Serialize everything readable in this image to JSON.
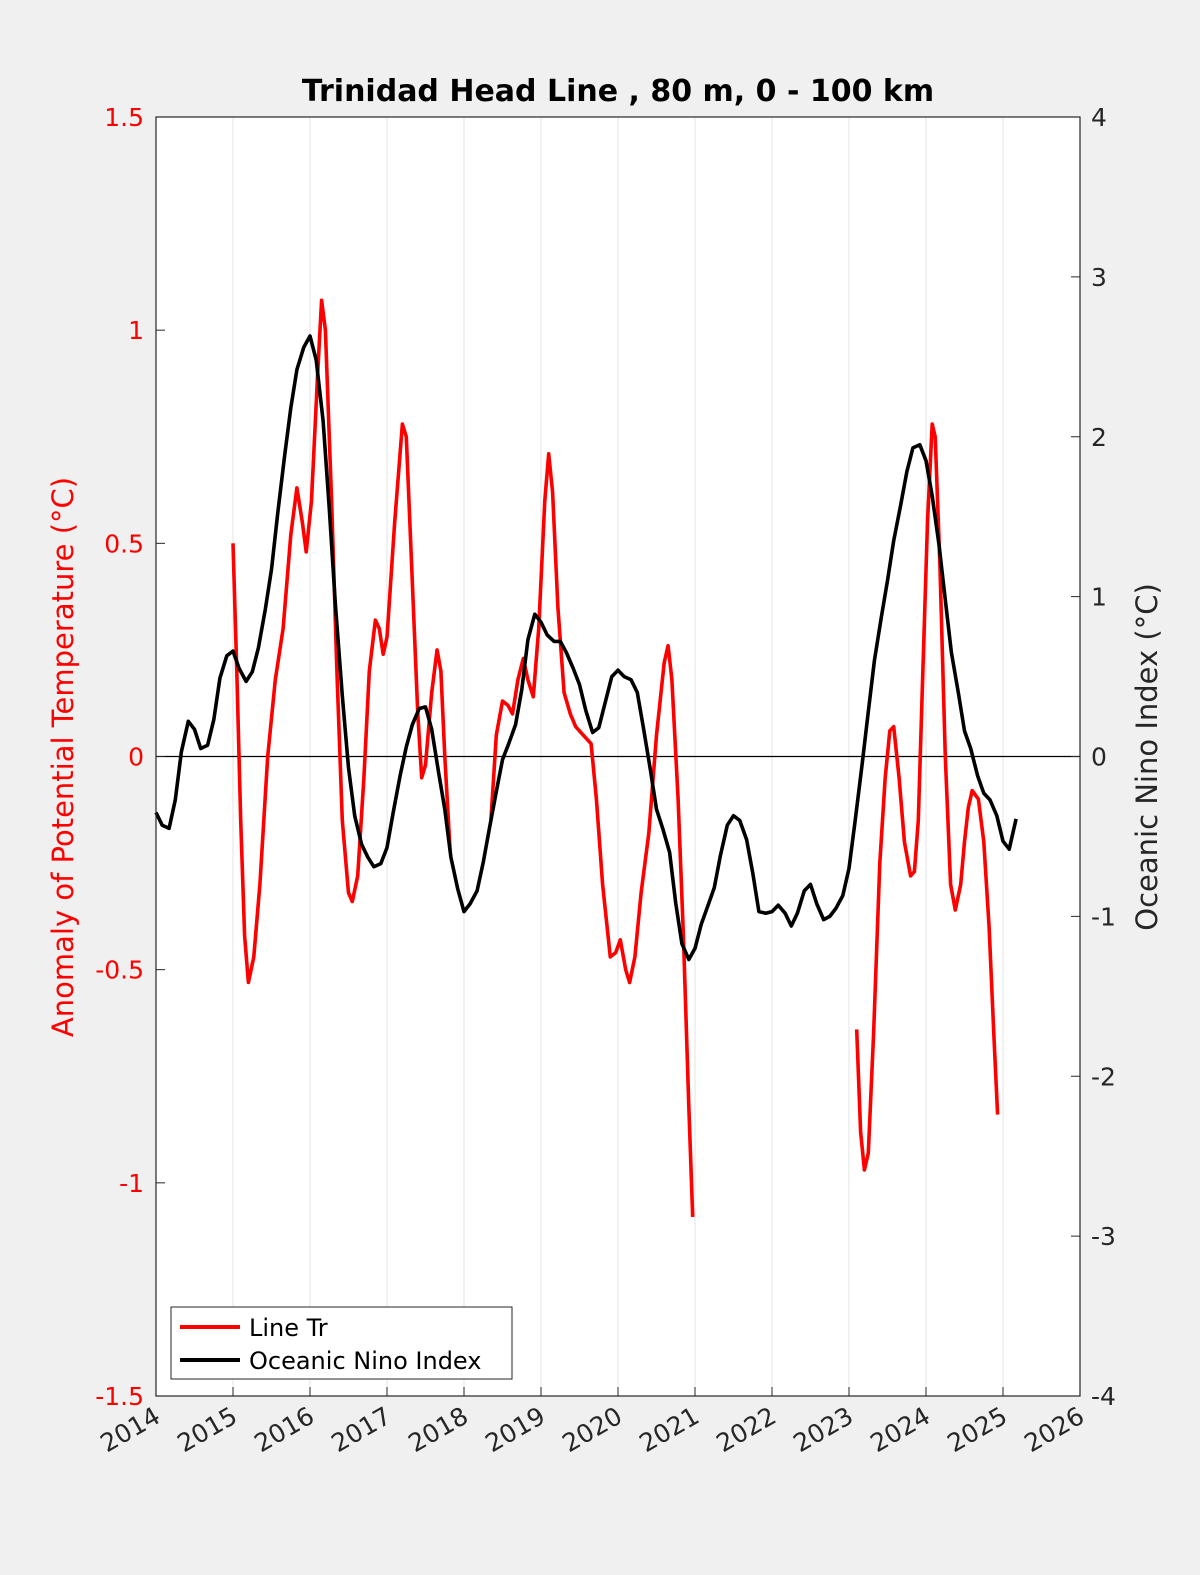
{
  "chart_data": {
    "type": "line",
    "title": "Trinidad Head Line , 80 m, 0 - 100 km",
    "ylabel_left": "Anomaly of Potential Temperature (°C)",
    "ylabel_right": "Oceanic Nino Index (°C)",
    "xlabel": "",
    "xlim": [
      2014,
      2026
    ],
    "ylim_left": [
      -1.5,
      1.5
    ],
    "ylim_right": [
      -4,
      4
    ],
    "x_ticks": [
      2014,
      2015,
      2016,
      2017,
      2018,
      2019,
      2020,
      2021,
      2022,
      2023,
      2024,
      2025,
      2026
    ],
    "x_tick_labels": [
      "2014",
      "2015",
      "2016",
      "2017",
      "2018",
      "2019",
      "2020",
      "2021",
      "2022",
      "2023",
      "2024",
      "2025",
      "2026"
    ],
    "y_left_ticks": [
      -1.5,
      -1,
      -0.5,
      0,
      0.5,
      1,
      1.5
    ],
    "y_left_tick_labels": [
      "-1.5",
      "-1",
      "-0.5",
      "0",
      "0.5",
      "1",
      "1.5"
    ],
    "y_right_ticks": [
      -4,
      -3,
      -2,
      -1,
      0,
      1,
      2,
      3,
      4
    ],
    "y_right_tick_labels": [
      "-4",
      "-3",
      "-2",
      "-1",
      "0",
      "1",
      "2",
      "3",
      "4"
    ],
    "grid_x": true,
    "zero_line": true,
    "legend_position": "bottom-left",
    "series": [
      {
        "name": "Line Tr",
        "axis": "left",
        "color": "#ff0000",
        "segments": [
          [
            [
              2015.0,
              0.5
            ],
            [
              2015.05,
              0.2
            ],
            [
              2015.1,
              -0.15
            ],
            [
              2015.15,
              -0.42
            ],
            [
              2015.2,
              -0.53
            ],
            [
              2015.27,
              -0.47
            ],
            [
              2015.35,
              -0.3
            ],
            [
              2015.45,
              0.0
            ],
            [
              2015.55,
              0.18
            ],
            [
              2015.65,
              0.3
            ],
            [
              2015.75,
              0.52
            ],
            [
              2015.83,
              0.63
            ],
            [
              2015.9,
              0.55
            ],
            [
              2015.95,
              0.48
            ],
            [
              2016.02,
              0.6
            ],
            [
              2016.1,
              0.9
            ],
            [
              2016.15,
              1.07
            ],
            [
              2016.2,
              1.0
            ],
            [
              2016.28,
              0.6
            ],
            [
              2016.35,
              0.2
            ],
            [
              2016.42,
              -0.15
            ],
            [
              2016.5,
              -0.32
            ],
            [
              2016.55,
              -0.34
            ],
            [
              2016.62,
              -0.28
            ],
            [
              2016.7,
              -0.05
            ],
            [
              2016.77,
              0.2
            ],
            [
              2016.85,
              0.32
            ],
            [
              2016.9,
              0.3
            ],
            [
              2016.95,
              0.24
            ],
            [
              2017.0,
              0.28
            ],
            [
              2017.1,
              0.55
            ],
            [
              2017.2,
              0.78
            ],
            [
              2017.25,
              0.75
            ],
            [
              2017.32,
              0.45
            ],
            [
              2017.4,
              0.1
            ],
            [
              2017.45,
              -0.05
            ],
            [
              2017.5,
              -0.02
            ],
            [
              2017.58,
              0.15
            ],
            [
              2017.65,
              0.25
            ],
            [
              2017.7,
              0.2
            ],
            [
              2017.75,
              0.0
            ],
            [
              2017.82,
              -0.22
            ]
          ],
          [
            [
              2018.35,
              -0.15
            ],
            [
              2018.42,
              0.05
            ],
            [
              2018.5,
              0.13
            ],
            [
              2018.57,
              0.12
            ],
            [
              2018.63,
              0.1
            ],
            [
              2018.7,
              0.18
            ],
            [
              2018.77,
              0.23
            ],
            [
              2018.83,
              0.18
            ],
            [
              2018.9,
              0.14
            ],
            [
              2018.97,
              0.3
            ],
            [
              2019.05,
              0.6
            ],
            [
              2019.1,
              0.71
            ],
            [
              2019.15,
              0.62
            ],
            [
              2019.22,
              0.35
            ],
            [
              2019.3,
              0.15
            ],
            [
              2019.38,
              0.1
            ],
            [
              2019.45,
              0.07
            ],
            [
              2019.55,
              0.05
            ],
            [
              2019.65,
              0.03
            ],
            [
              2019.72,
              -0.1
            ],
            [
              2019.8,
              -0.3
            ],
            [
              2019.9,
              -0.47
            ],
            [
              2019.97,
              -0.46
            ],
            [
              2020.03,
              -0.43
            ],
            [
              2020.1,
              -0.5
            ],
            [
              2020.15,
              -0.53
            ],
            [
              2020.22,
              -0.47
            ],
            [
              2020.3,
              -0.32
            ],
            [
              2020.4,
              -0.18
            ],
            [
              2020.5,
              0.05
            ],
            [
              2020.6,
              0.22
            ],
            [
              2020.65,
              0.26
            ],
            [
              2020.7,
              0.18
            ],
            [
              2020.78,
              -0.1
            ],
            [
              2020.85,
              -0.42
            ],
            [
              2020.92,
              -0.82
            ],
            [
              2020.97,
              -1.08
            ]
          ],
          [
            [
              2023.1,
              -0.64
            ],
            [
              2023.15,
              -0.88
            ],
            [
              2023.2,
              -0.97
            ],
            [
              2023.25,
              -0.93
            ],
            [
              2023.32,
              -0.65
            ],
            [
              2023.4,
              -0.25
            ],
            [
              2023.47,
              -0.05
            ],
            [
              2023.53,
              0.06
            ],
            [
              2023.58,
              0.07
            ],
            [
              2023.65,
              -0.05
            ],
            [
              2023.72,
              -0.2
            ],
            [
              2023.8,
              -0.28
            ],
            [
              2023.85,
              -0.27
            ],
            [
              2023.9,
              -0.15
            ],
            [
              2023.95,
              0.15
            ],
            [
              2024.02,
              0.55
            ],
            [
              2024.08,
              0.78
            ],
            [
              2024.12,
              0.75
            ],
            [
              2024.18,
              0.45
            ],
            [
              2024.25,
              0.0
            ],
            [
              2024.32,
              -0.3
            ],
            [
              2024.38,
              -0.36
            ],
            [
              2024.45,
              -0.3
            ],
            [
              2024.5,
              -0.2
            ],
            [
              2024.55,
              -0.12
            ],
            [
              2024.6,
              -0.08
            ],
            [
              2024.68,
              -0.1
            ],
            [
              2024.75,
              -0.2
            ],
            [
              2024.82,
              -0.4
            ],
            [
              2024.88,
              -0.65
            ],
            [
              2024.93,
              -0.84
            ]
          ]
        ]
      },
      {
        "name": "Oceanic Nino Index",
        "axis": "right",
        "color": "#000000",
        "segments": [
          [
            [
              2014.0,
              -0.35
            ],
            [
              2014.08,
              -0.43
            ],
            [
              2014.17,
              -0.45
            ],
            [
              2014.25,
              -0.27
            ],
            [
              2014.33,
              0.03
            ],
            [
              2014.42,
              0.22
            ],
            [
              2014.5,
              0.17
            ],
            [
              2014.58,
              0.05
            ],
            [
              2014.67,
              0.07
            ],
            [
              2014.75,
              0.23
            ],
            [
              2014.83,
              0.49
            ],
            [
              2014.92,
              0.63
            ],
            [
              2015.0,
              0.66
            ],
            [
              2015.08,
              0.55
            ],
            [
              2015.17,
              0.47
            ],
            [
              2015.25,
              0.53
            ],
            [
              2015.33,
              0.68
            ],
            [
              2015.42,
              0.92
            ],
            [
              2015.5,
              1.17
            ],
            [
              2015.58,
              1.52
            ],
            [
              2015.67,
              1.88
            ],
            [
              2015.75,
              2.18
            ],
            [
              2015.83,
              2.42
            ],
            [
              2015.92,
              2.56
            ],
            [
              2016.0,
              2.63
            ],
            [
              2016.08,
              2.48
            ],
            [
              2016.17,
              2.1
            ],
            [
              2016.25,
              1.55
            ],
            [
              2016.33,
              0.95
            ],
            [
              2016.42,
              0.38
            ],
            [
              2016.5,
              -0.07
            ],
            [
              2016.58,
              -0.37
            ],
            [
              2016.67,
              -0.55
            ],
            [
              2016.75,
              -0.63
            ],
            [
              2016.83,
              -0.69
            ],
            [
              2016.92,
              -0.67
            ],
            [
              2017.0,
              -0.57
            ],
            [
              2017.08,
              -0.35
            ],
            [
              2017.17,
              -0.12
            ],
            [
              2017.25,
              0.06
            ],
            [
              2017.33,
              0.2
            ],
            [
              2017.42,
              0.3
            ],
            [
              2017.5,
              0.31
            ],
            [
              2017.58,
              0.17
            ],
            [
              2017.67,
              -0.1
            ],
            [
              2017.75,
              -0.33
            ],
            [
              2017.83,
              -0.63
            ],
            [
              2017.92,
              -0.83
            ],
            [
              2018.0,
              -0.97
            ],
            [
              2018.08,
              -0.92
            ],
            [
              2018.17,
              -0.84
            ],
            [
              2018.25,
              -0.66
            ],
            [
              2018.33,
              -0.45
            ],
            [
              2018.42,
              -0.22
            ],
            [
              2018.5,
              -0.02
            ],
            [
              2018.58,
              0.08
            ],
            [
              2018.67,
              0.2
            ],
            [
              2018.75,
              0.42
            ],
            [
              2018.83,
              0.73
            ],
            [
              2018.92,
              0.89
            ],
            [
              2019.0,
              0.84
            ],
            [
              2019.08,
              0.76
            ],
            [
              2019.17,
              0.72
            ],
            [
              2019.25,
              0.72
            ],
            [
              2019.33,
              0.65
            ],
            [
              2019.42,
              0.55
            ],
            [
              2019.5,
              0.45
            ],
            [
              2019.58,
              0.29
            ],
            [
              2019.67,
              0.15
            ],
            [
              2019.75,
              0.18
            ],
            [
              2019.83,
              0.33
            ],
            [
              2019.92,
              0.5
            ],
            [
              2020.0,
              0.54
            ],
            [
              2020.08,
              0.5
            ],
            [
              2020.17,
              0.48
            ],
            [
              2020.25,
              0.4
            ],
            [
              2020.33,
              0.18
            ],
            [
              2020.42,
              -0.08
            ],
            [
              2020.5,
              -0.33
            ],
            [
              2020.58,
              -0.45
            ],
            [
              2020.67,
              -0.6
            ],
            [
              2020.75,
              -0.92
            ],
            [
              2020.83,
              -1.17
            ],
            [
              2020.92,
              -1.27
            ],
            [
              2021.0,
              -1.2
            ],
            [
              2021.08,
              -1.05
            ],
            [
              2021.17,
              -0.93
            ],
            [
              2021.25,
              -0.82
            ],
            [
              2021.33,
              -0.62
            ],
            [
              2021.42,
              -0.43
            ],
            [
              2021.5,
              -0.37
            ],
            [
              2021.58,
              -0.4
            ],
            [
              2021.67,
              -0.52
            ],
            [
              2021.75,
              -0.73
            ],
            [
              2021.83,
              -0.97
            ],
            [
              2021.92,
              -0.98
            ],
            [
              2022.0,
              -0.97
            ],
            [
              2022.08,
              -0.93
            ],
            [
              2022.17,
              -0.98
            ],
            [
              2022.25,
              -1.06
            ],
            [
              2022.33,
              -0.98
            ],
            [
              2022.42,
              -0.84
            ],
            [
              2022.5,
              -0.8
            ],
            [
              2022.58,
              -0.92
            ],
            [
              2022.67,
              -1.02
            ],
            [
              2022.75,
              -1.0
            ],
            [
              2022.83,
              -0.95
            ],
            [
              2022.92,
              -0.87
            ],
            [
              2023.0,
              -0.7
            ],
            [
              2023.08,
              -0.4
            ],
            [
              2023.17,
              -0.05
            ],
            [
              2023.25,
              0.28
            ],
            [
              2023.33,
              0.6
            ],
            [
              2023.42,
              0.87
            ],
            [
              2023.5,
              1.1
            ],
            [
              2023.58,
              1.35
            ],
            [
              2023.67,
              1.57
            ],
            [
              2023.75,
              1.78
            ],
            [
              2023.83,
              1.93
            ],
            [
              2023.92,
              1.95
            ],
            [
              2024.0,
              1.85
            ],
            [
              2024.08,
              1.63
            ],
            [
              2024.17,
              1.32
            ],
            [
              2024.25,
              0.98
            ],
            [
              2024.33,
              0.65
            ],
            [
              2024.42,
              0.4
            ],
            [
              2024.5,
              0.16
            ],
            [
              2024.58,
              0.05
            ],
            [
              2024.67,
              -0.12
            ],
            [
              2024.75,
              -0.23
            ],
            [
              2024.83,
              -0.27
            ],
            [
              2024.92,
              -0.37
            ],
            [
              2025.0,
              -0.53
            ],
            [
              2025.08,
              -0.58
            ],
            [
              2025.17,
              -0.39
            ]
          ]
        ]
      }
    ]
  }
}
